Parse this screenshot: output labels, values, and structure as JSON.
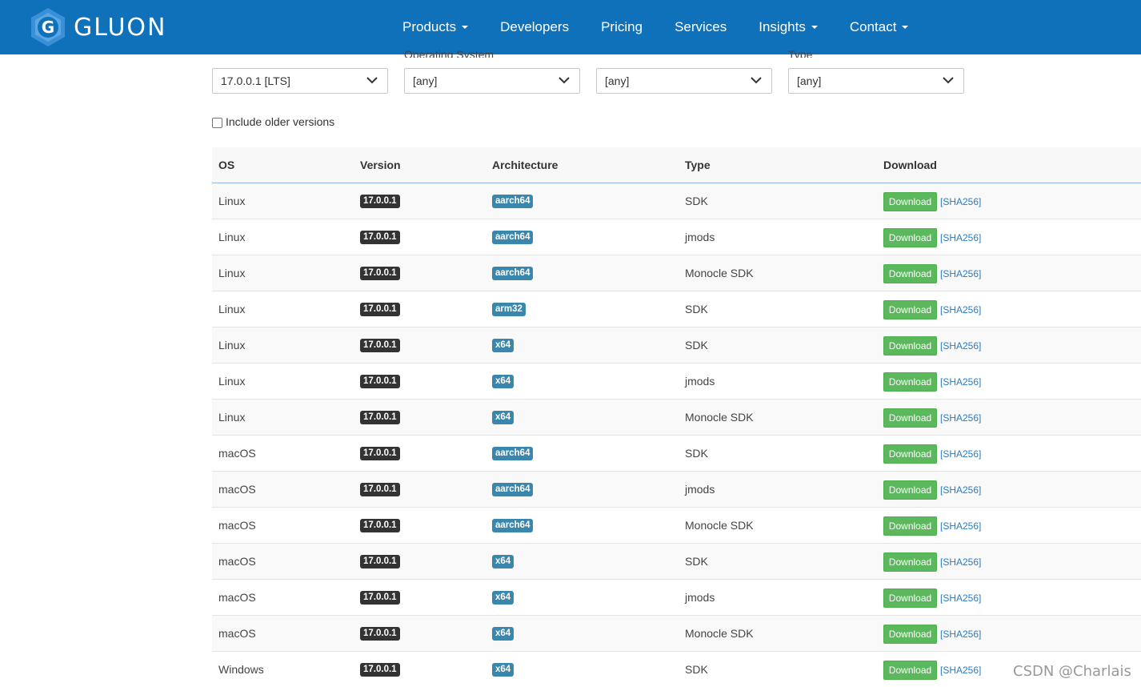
{
  "brand": {
    "name": "GLUON",
    "colors": {
      "navbar": "#1071bb",
      "download": "#5cb85c",
      "arch_badge": "#3a87ad",
      "version_badge": "#333333"
    }
  },
  "nav": {
    "items": [
      {
        "label": "Products",
        "dropdown": true
      },
      {
        "label": "Developers",
        "dropdown": false
      },
      {
        "label": "Pricing",
        "dropdown": false
      },
      {
        "label": "Services",
        "dropdown": false
      },
      {
        "label": "Insights",
        "dropdown": true
      },
      {
        "label": "Contact",
        "dropdown": true
      }
    ]
  },
  "filters": {
    "labels": [
      "",
      "Operating System",
      "",
      "Type"
    ],
    "selects": [
      {
        "value": "17.0.0.1 [LTS]"
      },
      {
        "value": "[any]"
      },
      {
        "value": "[any]"
      },
      {
        "value": "[any]"
      }
    ]
  },
  "older_versions": {
    "label": "Include older versions",
    "checked": false
  },
  "table": {
    "headers": [
      "OS",
      "Version",
      "Architecture",
      "Type",
      "Download"
    ],
    "download_label": "Download",
    "sha_label": "[SHA256]",
    "rows": [
      {
        "os": "Linux",
        "version": "17.0.0.1",
        "arch": "aarch64",
        "type": "SDK"
      },
      {
        "os": "Linux",
        "version": "17.0.0.1",
        "arch": "aarch64",
        "type": "jmods"
      },
      {
        "os": "Linux",
        "version": "17.0.0.1",
        "arch": "aarch64",
        "type": "Monocle SDK"
      },
      {
        "os": "Linux",
        "version": "17.0.0.1",
        "arch": "arm32",
        "type": "SDK"
      },
      {
        "os": "Linux",
        "version": "17.0.0.1",
        "arch": "x64",
        "type": "SDK"
      },
      {
        "os": "Linux",
        "version": "17.0.0.1",
        "arch": "x64",
        "type": "jmods"
      },
      {
        "os": "Linux",
        "version": "17.0.0.1",
        "arch": "x64",
        "type": "Monocle SDK"
      },
      {
        "os": "macOS",
        "version": "17.0.0.1",
        "arch": "aarch64",
        "type": "SDK"
      },
      {
        "os": "macOS",
        "version": "17.0.0.1",
        "arch": "aarch64",
        "type": "jmods"
      },
      {
        "os": "macOS",
        "version": "17.0.0.1",
        "arch": "aarch64",
        "type": "Monocle SDK"
      },
      {
        "os": "macOS",
        "version": "17.0.0.1",
        "arch": "x64",
        "type": "SDK"
      },
      {
        "os": "macOS",
        "version": "17.0.0.1",
        "arch": "x64",
        "type": "jmods"
      },
      {
        "os": "macOS",
        "version": "17.0.0.1",
        "arch": "x64",
        "type": "Monocle SDK"
      },
      {
        "os": "Windows",
        "version": "17.0.0.1",
        "arch": "x64",
        "type": "SDK"
      }
    ]
  },
  "watermark": "CSDN @Charlais"
}
